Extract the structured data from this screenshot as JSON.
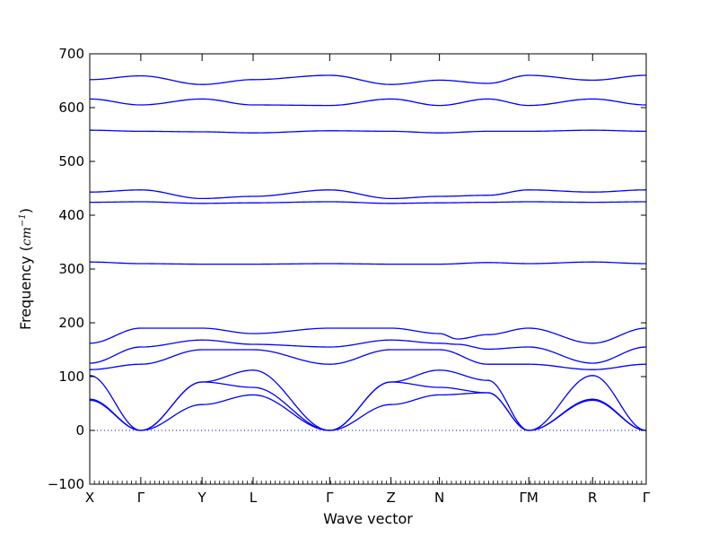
{
  "chart_data": {
    "type": "line",
    "xlabel": "Wave vector",
    "ylabel_main": "Frequency",
    "ylabel_unit": "cm",
    "ylabel_exp": "−1",
    "ylim": [
      -100,
      700
    ],
    "yticks": [
      -100,
      0,
      100,
      200,
      300,
      400,
      500,
      600,
      700
    ],
    "xticks": [
      {
        "label": "X",
        "x": 0
      },
      {
        "label": "Γ",
        "x": 1
      },
      {
        "label": "Y",
        "x": 2.2
      },
      {
        "label": "L",
        "x": 3.2
      },
      {
        "label": "Γ",
        "x": 4.7
      },
      {
        "label": "Z",
        "x": 5.9
      },
      {
        "label": "N",
        "x": 6.85
      },
      {
        "label": "ΓM",
        "x": 8.6
      },
      {
        "label": "R",
        "x": 9.85
      },
      {
        "label": "Γ",
        "x": 10.9
      }
    ],
    "xlim": [
      0,
      10.9
    ],
    "zero_line": true,
    "line_color": "#0000ff",
    "series": [
      {
        "values": [
          [
            0,
            652
          ],
          [
            1,
            659
          ],
          [
            2.2,
            643
          ],
          [
            3.2,
            652
          ],
          [
            4.7,
            660
          ],
          [
            5.9,
            643
          ],
          [
            6.85,
            651
          ],
          [
            7.8,
            645
          ],
          [
            8.6,
            660
          ],
          [
            9.85,
            651
          ],
          [
            10.9,
            660
          ]
        ]
      },
      {
        "values": [
          [
            0,
            616
          ],
          [
            1,
            605
          ],
          [
            2.2,
            616
          ],
          [
            3.2,
            605
          ],
          [
            4.7,
            604
          ],
          [
            5.9,
            616
          ],
          [
            6.85,
            604
          ],
          [
            7.8,
            616
          ],
          [
            8.6,
            604
          ],
          [
            9.85,
            616
          ],
          [
            10.9,
            605
          ]
        ]
      },
      {
        "values": [
          [
            0,
            558
          ],
          [
            1,
            556
          ],
          [
            2.2,
            555
          ],
          [
            3.2,
            553
          ],
          [
            4.7,
            557
          ],
          [
            5.9,
            556
          ],
          [
            6.85,
            553
          ],
          [
            7.8,
            556
          ],
          [
            8.6,
            556
          ],
          [
            9.85,
            558
          ],
          [
            10.9,
            556
          ]
        ]
      },
      {
        "values": [
          [
            0,
            443
          ],
          [
            1,
            447
          ],
          [
            2.2,
            431
          ],
          [
            3.2,
            435
          ],
          [
            4.7,
            447
          ],
          [
            5.9,
            431
          ],
          [
            6.85,
            435
          ],
          [
            7.8,
            437
          ],
          [
            8.6,
            447
          ],
          [
            9.85,
            443
          ],
          [
            10.9,
            447
          ]
        ]
      },
      {
        "values": [
          [
            0,
            424
          ],
          [
            1,
            425
          ],
          [
            2.2,
            422
          ],
          [
            3.2,
            423
          ],
          [
            4.7,
            425
          ],
          [
            5.9,
            422
          ],
          [
            6.85,
            423
          ],
          [
            7.8,
            424
          ],
          [
            8.6,
            425
          ],
          [
            9.85,
            424
          ],
          [
            10.9,
            425
          ]
        ]
      },
      {
        "values": [
          [
            0,
            313
          ],
          [
            1,
            310
          ],
          [
            2.2,
            309
          ],
          [
            3.2,
            309
          ],
          [
            4.7,
            310
          ],
          [
            5.9,
            309
          ],
          [
            6.85,
            309
          ],
          [
            7.8,
            312
          ],
          [
            8.6,
            310
          ],
          [
            9.85,
            313
          ],
          [
            10.9,
            310
          ]
        ]
      },
      {
        "values": [
          [
            0,
            162
          ],
          [
            1,
            190
          ],
          [
            2.2,
            190
          ],
          [
            3.2,
            180
          ],
          [
            4.7,
            190
          ],
          [
            5.9,
            190
          ],
          [
            6.85,
            180
          ],
          [
            7.2,
            170
          ],
          [
            7.8,
            178
          ],
          [
            8.6,
            190
          ],
          [
            9.85,
            162
          ],
          [
            10.9,
            190
          ]
        ]
      },
      {
        "values": [
          [
            0,
            125
          ],
          [
            1,
            155
          ],
          [
            2.2,
            168
          ],
          [
            3.2,
            160
          ],
          [
            4.7,
            155
          ],
          [
            5.9,
            168
          ],
          [
            6.85,
            162
          ],
          [
            7.2,
            160
          ],
          [
            7.8,
            151
          ],
          [
            8.6,
            155
          ],
          [
            9.85,
            125
          ],
          [
            10.9,
            155
          ]
        ]
      },
      {
        "values": [
          [
            0,
            113
          ],
          [
            1,
            123
          ],
          [
            2.2,
            150
          ],
          [
            3.2,
            150
          ],
          [
            4.7,
            123
          ],
          [
            5.9,
            150
          ],
          [
            6.85,
            150
          ],
          [
            7.8,
            123
          ],
          [
            8.6,
            123
          ],
          [
            9.85,
            113
          ],
          [
            10.9,
            123
          ]
        ]
      },
      {
        "values": [
          [
            0,
            102
          ],
          [
            1,
            0
          ],
          [
            2.2,
            90
          ],
          [
            3.2,
            112
          ],
          [
            4.7,
            0
          ],
          [
            5.9,
            90
          ],
          [
            6.85,
            112
          ],
          [
            7.8,
            93
          ],
          [
            8.6,
            0
          ],
          [
            9.85,
            102
          ],
          [
            10.9,
            0
          ]
        ]
      },
      {
        "values": [
          [
            0,
            58
          ],
          [
            1,
            0
          ],
          [
            2.2,
            90
          ],
          [
            3.2,
            80
          ],
          [
            4.7,
            0
          ],
          [
            5.9,
            90
          ],
          [
            6.85,
            80
          ],
          [
            7.8,
            70
          ],
          [
            8.6,
            0
          ],
          [
            9.85,
            58
          ],
          [
            10.9,
            0
          ]
        ]
      },
      {
        "values": [
          [
            0,
            56
          ],
          [
            1,
            0
          ],
          [
            2.2,
            48
          ],
          [
            3.2,
            66
          ],
          [
            4.7,
            0
          ],
          [
            5.9,
            48
          ],
          [
            6.85,
            66
          ],
          [
            7.8,
            70
          ],
          [
            8.6,
            0
          ],
          [
            9.85,
            56
          ],
          [
            10.9,
            0
          ]
        ]
      }
    ]
  }
}
